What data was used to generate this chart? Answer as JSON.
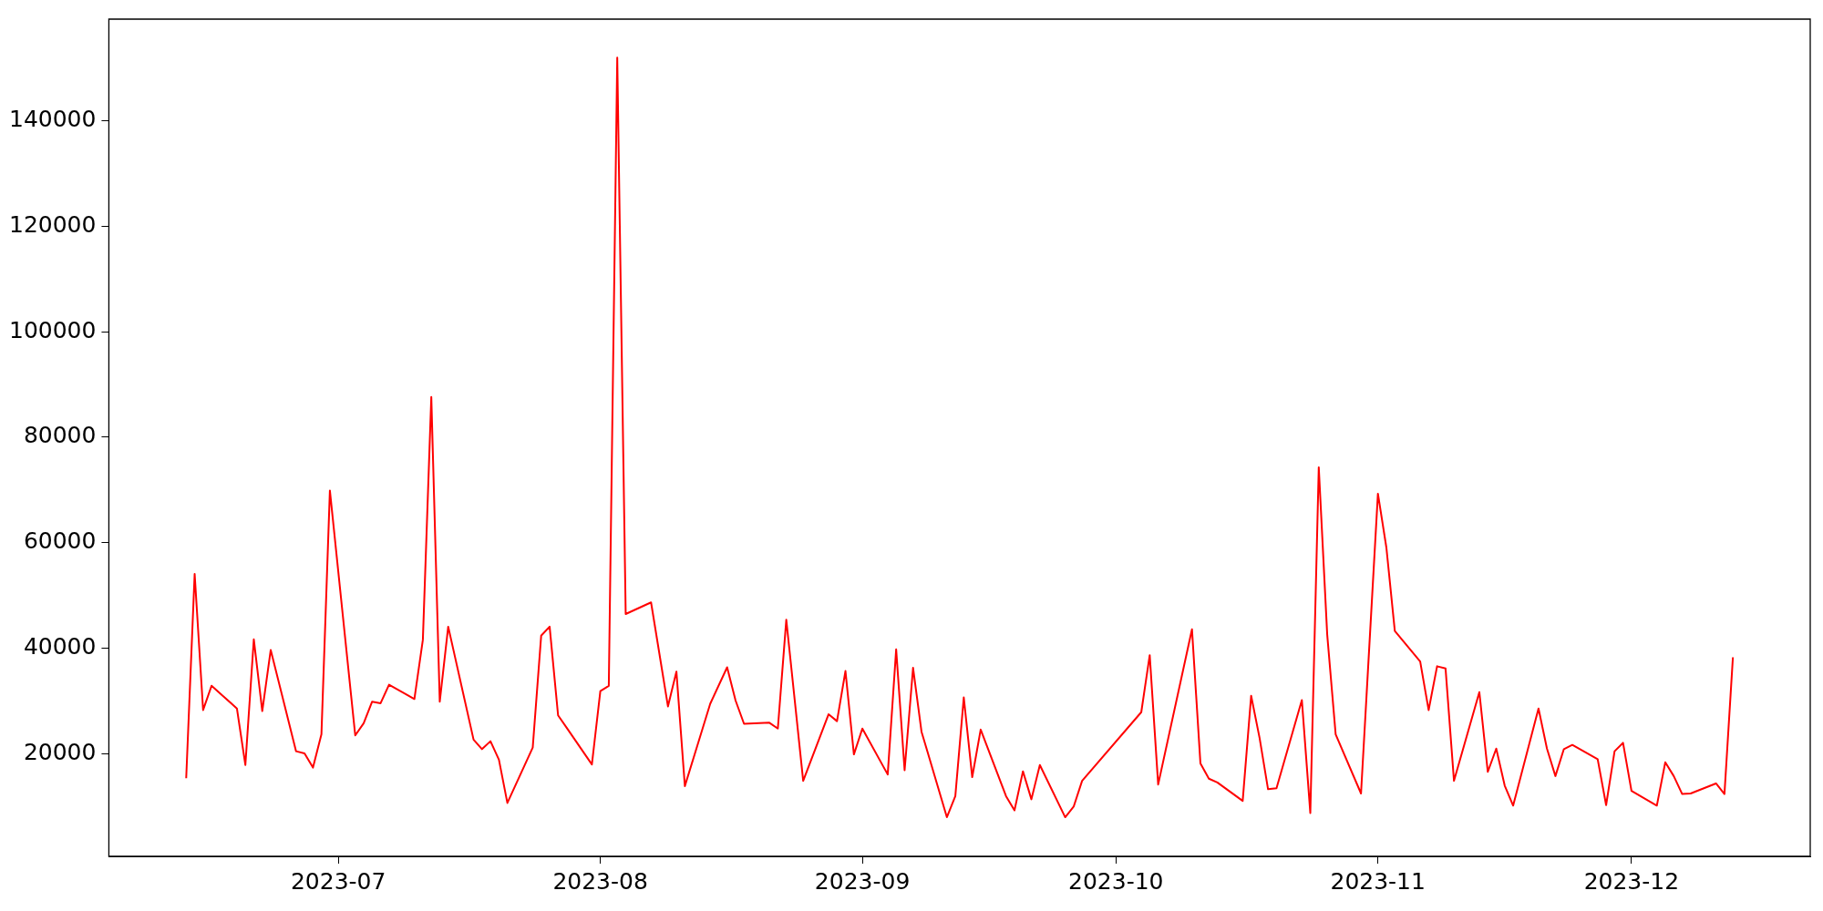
{
  "chart_data": {
    "type": "line",
    "x": [
      "2023-06-13",
      "2023-06-14",
      "2023-06-15",
      "2023-06-16",
      "2023-06-19",
      "2023-06-20",
      "2023-06-21",
      "2023-06-22",
      "2023-06-23",
      "2023-06-26",
      "2023-06-27",
      "2023-06-28",
      "2023-06-29",
      "2023-06-30",
      "2023-07-03",
      "2023-07-04",
      "2023-07-05",
      "2023-07-06",
      "2023-07-07",
      "2023-07-10",
      "2023-07-11",
      "2023-07-12",
      "2023-07-13",
      "2023-07-14",
      "2023-07-17",
      "2023-07-18",
      "2023-07-19",
      "2023-07-20",
      "2023-07-21",
      "2023-07-24",
      "2023-07-25",
      "2023-07-26",
      "2023-07-27",
      "2023-07-28",
      "2023-07-31",
      "2023-08-01",
      "2023-08-02",
      "2023-08-03",
      "2023-08-04",
      "2023-08-07",
      "2023-08-09",
      "2023-08-10",
      "2023-08-11",
      "2023-08-14",
      "2023-08-16",
      "2023-08-17",
      "2023-08-18",
      "2023-08-21",
      "2023-08-22",
      "2023-08-23",
      "2023-08-25",
      "2023-08-28",
      "2023-08-29",
      "2023-08-30",
      "2023-08-31",
      "2023-09-01",
      "2023-09-04",
      "2023-09-05",
      "2023-09-06",
      "2023-09-07",
      "2023-09-08",
      "2023-09-11",
      "2023-09-12",
      "2023-09-13",
      "2023-09-14",
      "2023-09-15",
      "2023-09-18",
      "2023-09-19",
      "2023-09-20",
      "2023-09-21",
      "2023-09-22",
      "2023-09-25",
      "2023-09-26",
      "2023-09-27",
      "2023-10-04",
      "2023-10-05",
      "2023-10-06",
      "2023-10-10",
      "2023-10-11",
      "2023-10-12",
      "2023-10-13",
      "2023-10-16",
      "2023-10-17",
      "2023-10-18",
      "2023-10-19",
      "2023-10-20",
      "2023-10-23",
      "2023-10-24",
      "2023-10-25",
      "2023-10-26",
      "2023-10-27",
      "2023-10-30",
      "2023-11-01",
      "2023-11-02",
      "2023-11-03",
      "2023-11-06",
      "2023-11-07",
      "2023-11-08",
      "2023-11-09",
      "2023-11-10",
      "2023-11-13",
      "2023-11-14",
      "2023-11-15",
      "2023-11-16",
      "2023-11-17",
      "2023-11-20",
      "2023-11-21",
      "2023-11-22",
      "2023-11-23",
      "2023-11-24",
      "2023-11-27",
      "2023-11-28",
      "2023-11-29",
      "2023-11-30",
      "2023-12-01",
      "2023-12-04",
      "2023-12-05",
      "2023-12-06",
      "2023-12-07",
      "2023-12-08",
      "2023-12-11",
      "2023-12-12",
      "2023-12-13"
    ],
    "series": [
      {
        "color": "#ff0000",
        "values": [
          15400,
          54100,
          28300,
          32900,
          28600,
          17900,
          41700,
          28100,
          39700,
          20500,
          20100,
          17400,
          23700,
          69900,
          23500,
          25800,
          29900,
          29600,
          33100,
          30400,
          41600,
          87600,
          29900,
          44100,
          22700,
          20900,
          22400,
          18900,
          10700,
          21200,
          42400,
          44100,
          27300,
          25000,
          18000,
          31900,
          32900,
          151900,
          46500,
          48700,
          29000,
          35600,
          13900,
          29500,
          36400,
          30100,
          25700,
          25900,
          24800,
          45400,
          14900,
          27500,
          26200,
          35700,
          19900,
          24800,
          16100,
          39800,
          16900,
          36300,
          24200,
          8000,
          12000,
          30700,
          15600,
          24600,
          12000,
          9300,
          16700,
          11400,
          17900,
          8000,
          10000,
          14900,
          27900,
          38700,
          14200,
          43600,
          18200,
          15300,
          14600,
          11100,
          31000,
          23000,
          13300,
          13500,
          30200,
          8800,
          74300,
          42600,
          23700,
          12500,
          69300,
          59100,
          43300,
          37500,
          28300,
          36600,
          36200,
          14900,
          31700,
          16600,
          21000,
          14000,
          10200,
          28600,
          21000,
          15800,
          20900,
          21700,
          19000,
          10300,
          20500,
          22100,
          13000,
          10200,
          18400,
          15800,
          12400,
          12500,
          14400,
          12400,
          38300
        ]
      }
    ],
    "xlim": [
      "2023-06-03T20:24",
      "2023-12-22T03:36"
    ],
    "xticks": [
      "2023-07",
      "2023-08",
      "2023-09",
      "2023-10",
      "2023-11",
      "2023-12"
    ],
    "ylim": [
      590,
      159200
    ],
    "yticks": [
      20000,
      40000,
      60000,
      80000,
      100000,
      120000,
      140000
    ],
    "grid": false,
    "legend": false,
    "marker": "none",
    "line_style": "solid"
  }
}
